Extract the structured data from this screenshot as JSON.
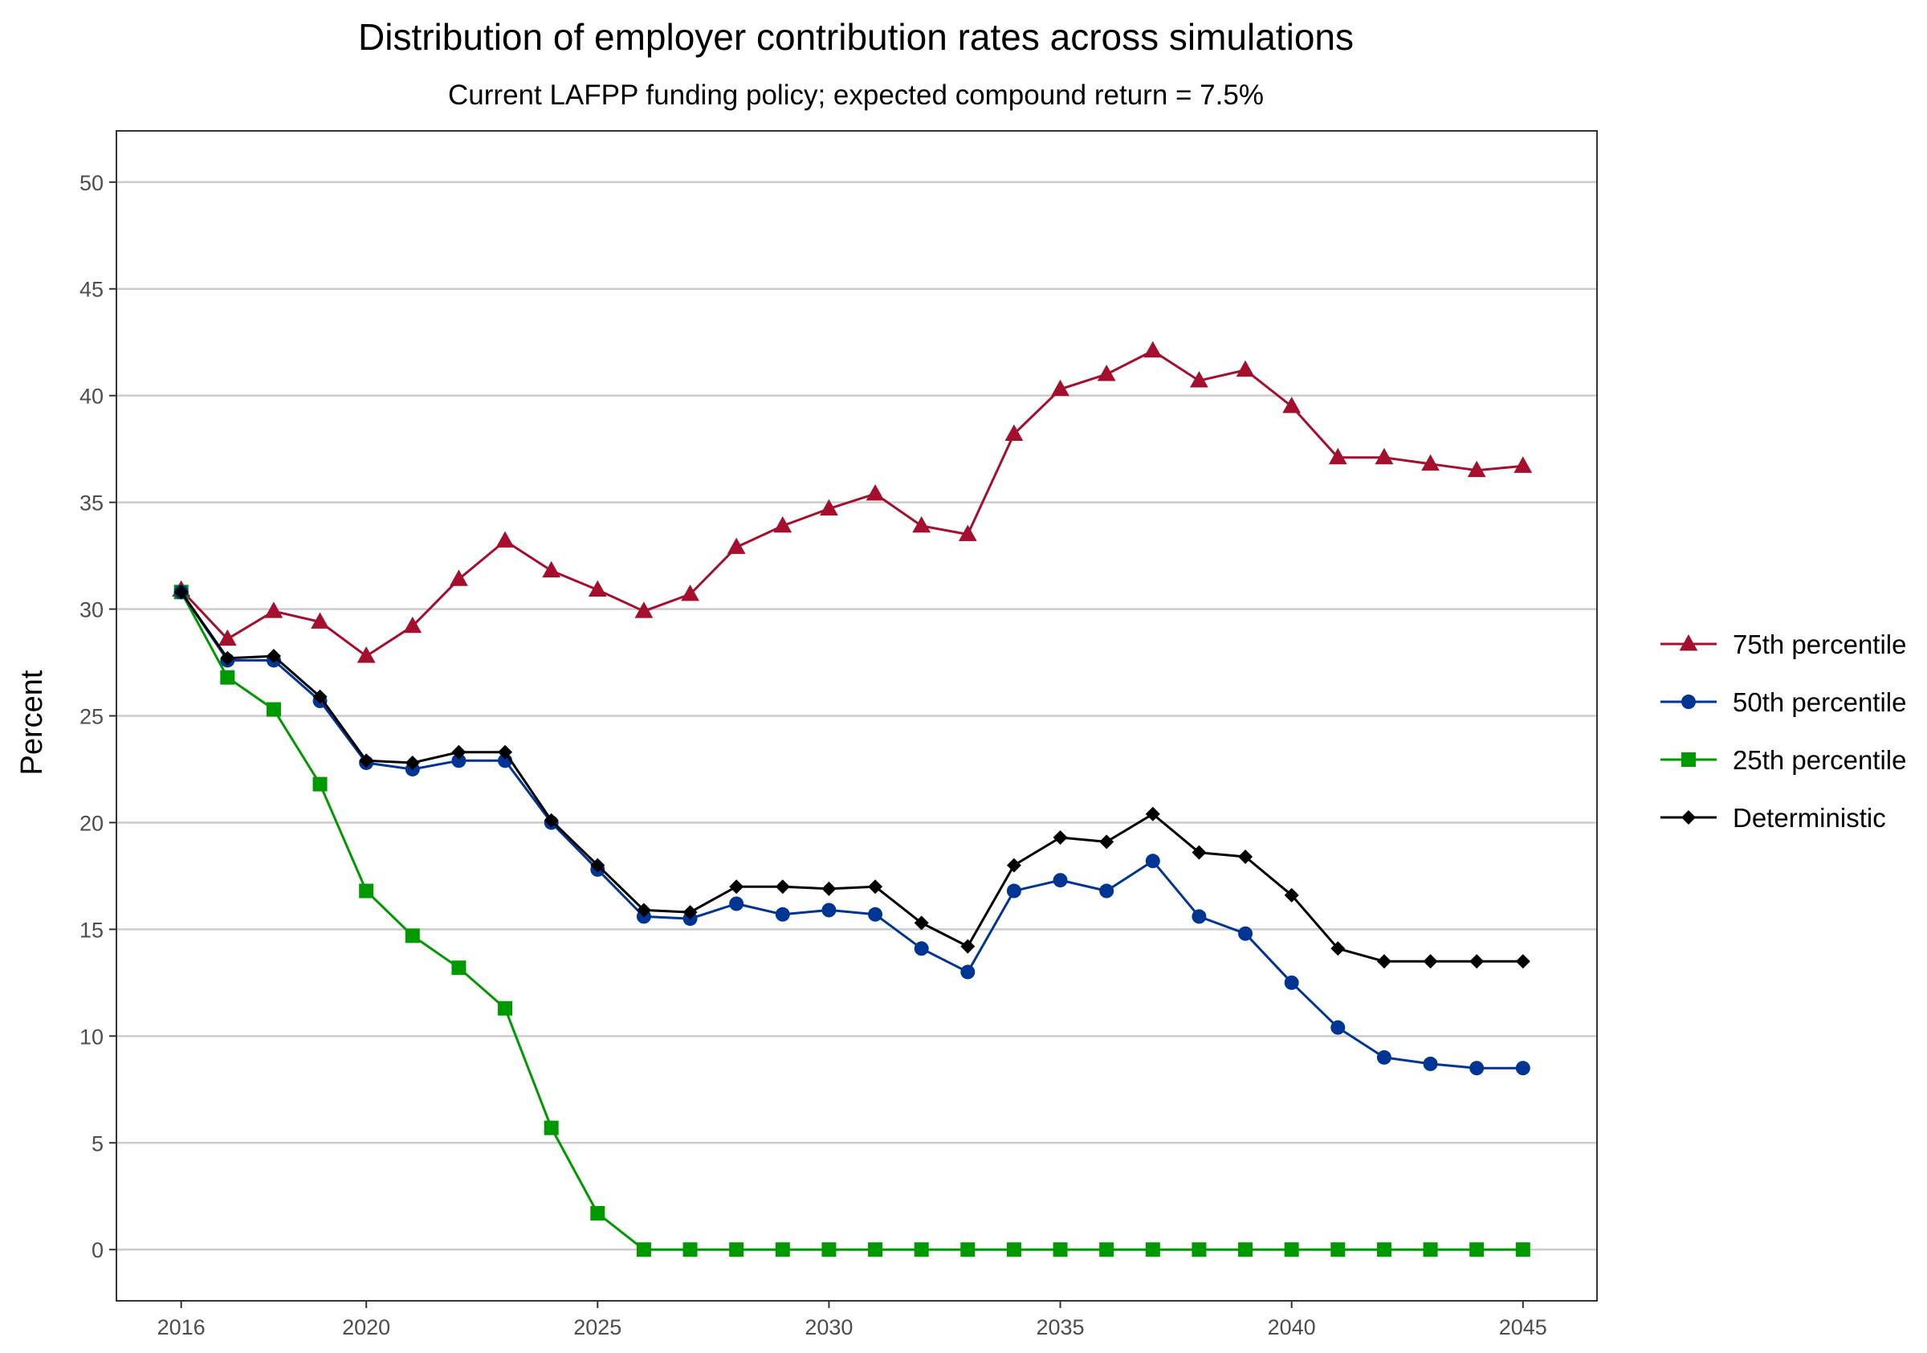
{
  "chart_data": {
    "type": "line",
    "title": "Distribution of employer contribution rates across simulations",
    "subtitle": "Current LAFPP funding policy; expected compound return = 7.5%",
    "xlabel": "",
    "ylabel": "Percent",
    "xlim": [
      2014.6,
      2046.6
    ],
    "ylim": [
      -2.4,
      52.4
    ],
    "x_ticks": [
      2016,
      2020,
      2025,
      2030,
      2035,
      2040,
      2045
    ],
    "y_ticks": [
      0,
      5,
      10,
      15,
      20,
      25,
      30,
      35,
      40,
      45,
      50
    ],
    "grid": "horizontal",
    "legend_position": "right",
    "x": [
      2016,
      2017,
      2018,
      2019,
      2020,
      2021,
      2022,
      2023,
      2024,
      2025,
      2026,
      2027,
      2028,
      2029,
      2030,
      2031,
      2032,
      2033,
      2034,
      2035,
      2036,
      2037,
      2038,
      2039,
      2040,
      2041,
      2042,
      2043,
      2044,
      2045
    ],
    "series": [
      {
        "name": "75th percentile",
        "color": "#a50f2d",
        "marker": "triangle",
        "values": [
          30.9,
          28.6,
          29.9,
          29.4,
          27.8,
          29.2,
          31.4,
          33.2,
          31.8,
          30.9,
          29.9,
          30.7,
          32.9,
          33.9,
          34.7,
          35.4,
          33.9,
          33.5,
          38.2,
          40.3,
          41.0,
          42.1,
          40.7,
          41.2,
          39.5,
          37.1,
          37.1,
          36.8,
          36.5,
          36.7
        ]
      },
      {
        "name": "50th percentile",
        "color": "#003594",
        "marker": "circle",
        "values": [
          30.8,
          27.6,
          27.6,
          25.7,
          22.8,
          22.5,
          22.9,
          22.9,
          20.0,
          17.8,
          15.6,
          15.5,
          16.2,
          15.7,
          15.9,
          15.7,
          14.1,
          13.0,
          16.8,
          17.3,
          16.8,
          18.2,
          15.6,
          14.8,
          12.5,
          10.4,
          9.0,
          8.7,
          8.5,
          8.5
        ]
      },
      {
        "name": "25th percentile",
        "color": "#009900",
        "marker": "square",
        "values": [
          30.8,
          26.8,
          25.3,
          21.8,
          16.8,
          14.7,
          13.2,
          11.3,
          5.7,
          1.7,
          0,
          0,
          0,
          0,
          0,
          0,
          0,
          0,
          0,
          0,
          0,
          0,
          0,
          0,
          0,
          0,
          0,
          0,
          0,
          0
        ]
      },
      {
        "name": "Deterministic",
        "color": "#000000",
        "marker": "diamond",
        "values": [
          30.8,
          27.7,
          27.8,
          25.9,
          22.9,
          22.8,
          23.3,
          23.3,
          20.1,
          18.0,
          15.9,
          15.8,
          17.0,
          17.0,
          16.9,
          17.0,
          15.3,
          14.2,
          18.0,
          19.3,
          19.1,
          20.4,
          18.6,
          18.4,
          16.6,
          14.1,
          13.5,
          13.5,
          13.5,
          13.5
        ]
      }
    ]
  }
}
